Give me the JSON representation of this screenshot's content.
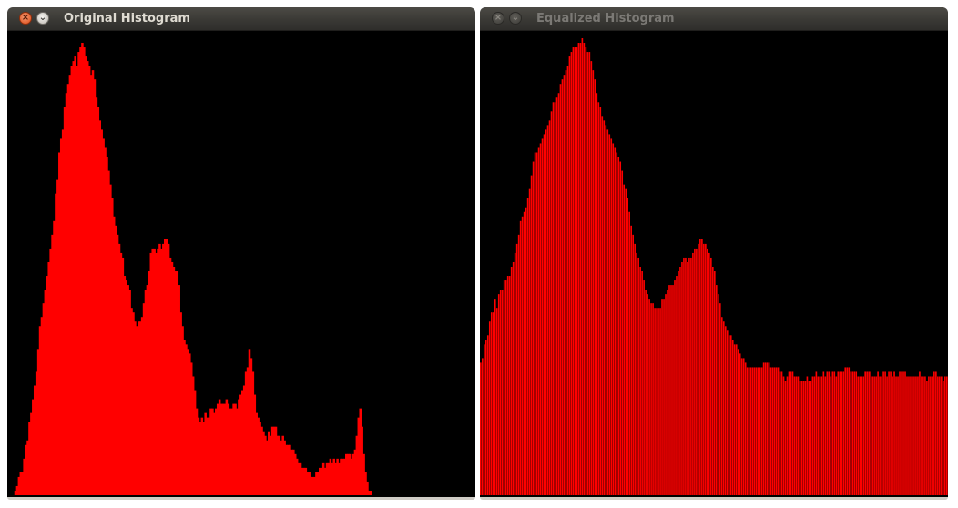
{
  "windows": [
    {
      "title": "Original Histogram",
      "state": "active",
      "buttons": {
        "close": "close-icon",
        "minimize": "chevron-down-icon"
      }
    },
    {
      "title": "Equalized Histogram",
      "state": "inactive",
      "buttons": {
        "close": "close-icon",
        "minimize": "chevron-down-icon"
      }
    }
  ],
  "colors": {
    "bar": "#ff0000",
    "canvas": "#000000",
    "separator_bar": "#600000"
  },
  "chart_data": [
    {
      "type": "bar",
      "bins": 256,
      "ylim": [
        0,
        100
      ],
      "values": [
        0,
        0,
        0,
        0,
        1,
        2,
        4,
        5,
        5,
        8,
        11,
        12,
        16,
        18,
        21,
        24,
        27,
        32,
        37,
        39,
        42,
        45,
        48,
        51,
        54,
        57,
        60,
        66,
        69,
        75,
        78,
        80,
        85,
        88,
        90,
        92,
        94,
        95,
        96,
        94,
        97,
        98,
        99,
        98,
        96,
        95,
        94,
        92,
        93,
        91,
        87,
        85,
        82,
        80,
        78,
        76,
        74,
        71,
        68,
        65,
        61,
        59,
        57,
        55,
        53,
        52,
        48,
        47,
        46,
        45,
        41,
        40,
        38,
        37,
        38,
        38,
        39,
        42,
        45,
        46,
        49,
        53,
        54,
        54,
        53,
        54,
        55,
        54,
        55,
        56,
        56,
        55,
        52,
        51,
        50,
        49,
        49,
        46,
        40,
        37,
        34,
        33,
        32,
        31,
        29,
        26,
        23,
        19,
        17,
        16,
        17,
        16,
        18,
        17,
        17,
        19,
        19,
        18,
        19,
        20,
        21,
        20,
        20,
        20,
        21,
        20,
        19,
        19,
        20,
        20,
        19,
        21,
        22,
        23,
        24,
        27,
        28,
        32,
        30,
        27,
        22,
        18,
        17,
        16,
        15,
        14,
        13,
        12,
        14,
        13,
        15,
        15,
        15,
        13,
        13,
        12,
        13,
        12,
        11,
        11,
        11,
        10,
        10,
        9,
        8,
        7,
        7,
        6,
        6,
        6,
        5,
        5,
        4,
        4,
        4,
        5,
        5,
        6,
        6,
        7,
        6,
        7,
        7,
        8,
        7,
        8,
        7,
        8,
        7,
        8,
        8,
        8,
        9,
        9,
        9,
        8,
        9,
        10,
        13,
        17,
        19,
        15,
        9,
        5,
        3,
        1,
        1,
        0,
        0,
        0,
        0,
        0,
        0,
        0,
        0,
        0,
        0,
        0,
        0,
        0,
        0,
        0,
        0,
        0,
        0,
        0,
        0,
        0,
        0,
        0,
        0,
        0,
        0,
        0,
        0,
        0,
        0,
        0,
        0,
        0,
        0,
        0,
        0,
        0,
        0,
        0,
        0,
        0,
        0,
        0,
        0,
        0,
        0,
        0,
        0,
        0,
        0,
        0,
        0,
        0,
        0,
        0,
        0,
        0,
        0,
        0
      ]
    },
    {
      "type": "bar",
      "bins": 256,
      "ylim": [
        0,
        100
      ],
      "values": [
        29,
        30,
        33,
        34,
        35,
        38,
        40,
        40,
        43,
        41,
        44,
        45,
        45,
        47,
        47,
        48,
        48,
        50,
        51,
        53,
        55,
        57,
        60,
        61,
        62,
        63,
        65,
        67,
        70,
        73,
        75,
        75,
        76,
        77,
        78,
        79,
        80,
        81,
        82,
        84,
        86,
        86,
        87,
        88,
        90,
        91,
        92,
        93,
        94,
        96,
        97,
        98,
        98,
        98,
        99,
        99,
        100,
        99,
        98,
        97,
        97,
        95,
        93,
        91,
        88,
        86,
        85,
        83,
        82,
        81,
        80,
        79,
        78,
        77,
        76,
        75,
        74,
        73,
        71,
        68,
        67,
        65,
        62,
        59,
        57,
        55,
        53,
        52,
        50,
        49,
        47,
        45,
        44,
        43,
        42,
        42,
        41,
        41,
        41,
        41,
        43,
        43,
        44,
        45,
        46,
        46,
        46,
        47,
        48,
        49,
        50,
        51,
        52,
        52,
        51,
        52,
        52,
        53,
        54,
        54,
        55,
        56,
        56,
        55,
        55,
        54,
        53,
        52,
        50,
        49,
        46,
        44,
        42,
        39,
        38,
        37,
        36,
        35,
        35,
        34,
        33,
        33,
        32,
        31,
        30,
        30,
        29,
        28,
        28,
        28,
        28,
        28,
        28,
        28,
        28,
        28,
        29,
        29,
        29,
        29,
        28,
        28,
        28,
        28,
        28,
        27,
        27,
        26,
        25,
        26,
        27,
        27,
        27,
        26,
        26,
        26,
        25,
        25,
        25,
        25,
        26,
        25,
        25,
        26,
        26,
        27,
        26,
        26,
        26,
        27,
        26,
        27,
        27,
        26,
        27,
        27,
        26,
        27,
        27,
        27,
        27,
        28,
        28,
        28,
        27,
        27,
        27,
        27,
        26,
        26,
        26,
        26,
        27,
        27,
        27,
        27,
        26,
        26,
        26,
        27,
        26,
        26,
        27,
        27,
        26,
        27,
        27,
        26,
        27,
        26,
        26,
        27,
        27,
        27,
        27,
        26,
        26,
        26,
        26,
        26,
        26,
        26,
        27,
        26,
        26,
        26,
        25,
        26,
        26,
        26,
        27,
        27,
        26,
        26,
        26,
        25,
        26,
        26
      ]
    }
  ]
}
